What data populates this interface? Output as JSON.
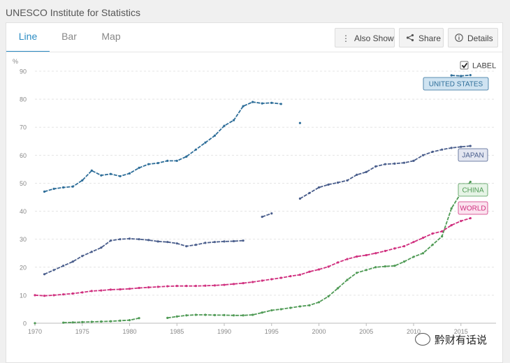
{
  "source": "UNESCO Institute for Statistics",
  "tabs": [
    {
      "label": "Line",
      "active": true
    },
    {
      "label": "Bar",
      "active": false
    },
    {
      "label": "Map",
      "active": false
    }
  ],
  "toolbar": {
    "also_show": "Also Show",
    "share": "Share",
    "details": "Details"
  },
  "label_toggle": {
    "label": "LABEL",
    "checked": true
  },
  "watermark": "黔财有话说",
  "chart_data": {
    "type": "line",
    "title": "",
    "xlabel": "",
    "ylabel": "%",
    "xlim": [
      1970,
      2016
    ],
    "ylim": [
      0,
      90
    ],
    "x_ticks": [
      1970,
      1975,
      1980,
      1985,
      1990,
      1995,
      2000,
      2005,
      2010,
      2015
    ],
    "y_ticks": [
      0,
      10,
      20,
      30,
      40,
      50,
      60,
      70,
      80,
      90
    ],
    "grid": true,
    "series": [
      {
        "name": "UNITED STATES",
        "color": "#2e6e99",
        "label_bg": "#cfe3f1",
        "segments": [
          [
            [
              1971,
              47
            ],
            [
              1972,
              48
            ],
            [
              1973,
              48.5
            ],
            [
              1974,
              48.8
            ],
            [
              1975,
              51
            ],
            [
              1976,
              54.5
            ],
            [
              1977,
              52.8
            ],
            [
              1978,
              53.3
            ],
            [
              1979,
              52.5
            ],
            [
              1980,
              53.5
            ],
            [
              1981,
              55.5
            ],
            [
              1982,
              56.8
            ],
            [
              1983,
              57.2
            ],
            [
              1984,
              58
            ],
            [
              1985,
              58
            ],
            [
              1986,
              59.5
            ],
            [
              1987,
              62
            ],
            [
              1988,
              64.5
            ],
            [
              1989,
              67
            ],
            [
              1990,
              70.5
            ],
            [
              1991,
              72.5
            ],
            [
              1992,
              77.5
            ],
            [
              1993,
              79
            ],
            [
              1994,
              78.5
            ],
            [
              1995,
              78.7
            ],
            [
              1996,
              78.3
            ]
          ],
          [
            [
              1998,
              71.5
            ]
          ],
          [
            [
              2014,
              88.5
            ],
            [
              2015,
              88.3
            ],
            [
              2016,
              88.6
            ]
          ]
        ]
      },
      {
        "name": "JAPAN",
        "color": "#4a5e8c",
        "label_bg": "#e3e6f1",
        "segments": [
          [
            [
              1971,
              17.5
            ],
            [
              1972,
              19
            ],
            [
              1973,
              20.5
            ],
            [
              1974,
              22
            ],
            [
              1975,
              24
            ],
            [
              1976,
              25.5
            ],
            [
              1977,
              27
            ],
            [
              1978,
              29.5
            ],
            [
              1979,
              30
            ],
            [
              1980,
              30.2
            ],
            [
              1981,
              30
            ],
            [
              1982,
              29.7
            ],
            [
              1983,
              29.2
            ],
            [
              1984,
              29
            ],
            [
              1985,
              28.5
            ],
            [
              1986,
              27.5
            ],
            [
              1987,
              28
            ],
            [
              1988,
              28.7
            ],
            [
              1989,
              29
            ],
            [
              1990,
              29.2
            ],
            [
              1991,
              29.3
            ],
            [
              1992,
              29.5
            ]
          ],
          [
            [
              1994,
              38
            ],
            [
              1995,
              39.2
            ]
          ],
          [
            [
              1998,
              44.5
            ],
            [
              1999,
              46.5
            ],
            [
              2000,
              48.5
            ],
            [
              2001,
              49.5
            ],
            [
              2002,
              50.2
            ],
            [
              2003,
              51
            ],
            [
              2004,
              53
            ],
            [
              2005,
              54
            ],
            [
              2006,
              56
            ],
            [
              2007,
              56.8
            ],
            [
              2008,
              57
            ],
            [
              2009,
              57.3
            ],
            [
              2010,
              58
            ],
            [
              2011,
              60
            ],
            [
              2012,
              61.2
            ],
            [
              2013,
              62
            ],
            [
              2014,
              62.6
            ],
            [
              2015,
              63
            ],
            [
              2016,
              63.3
            ]
          ]
        ]
      },
      {
        "name": "CHINA",
        "color": "#4f9a55",
        "label_bg": "#e6f4e6",
        "segments": [
          [
            [
              1970,
              0
            ]
          ],
          [
            [
              1973,
              0.2
            ],
            [
              1974,
              0.3
            ],
            [
              1975,
              0.4
            ],
            [
              1976,
              0.5
            ],
            [
              1977,
              0.6
            ],
            [
              1978,
              0.7
            ],
            [
              1979,
              0.9
            ],
            [
              1980,
              1.1
            ],
            [
              1981,
              1.8
            ]
          ],
          [
            [
              1984,
              1.9
            ],
            [
              1985,
              2.4
            ],
            [
              1986,
              2.8
            ],
            [
              1987,
              3
            ],
            [
              1988,
              3
            ],
            [
              1989,
              2.9
            ],
            [
              1990,
              2.9
            ],
            [
              1991,
              2.8
            ],
            [
              1992,
              2.8
            ],
            [
              1993,
              3
            ],
            [
              1994,
              3.8
            ],
            [
              1995,
              4.6
            ],
            [
              1996,
              5
            ],
            [
              1997,
              5.5
            ],
            [
              1998,
              6
            ],
            [
              1999,
              6.4
            ],
            [
              2000,
              7.5
            ],
            [
              2001,
              9.6
            ],
            [
              2002,
              12.5
            ],
            [
              2003,
              15.5
            ],
            [
              2004,
              18
            ],
            [
              2005,
              19
            ],
            [
              2006,
              20
            ],
            [
              2007,
              20.3
            ],
            [
              2008,
              20.5
            ],
            [
              2009,
              22
            ],
            [
              2010,
              23.7
            ],
            [
              2011,
              25
            ],
            [
              2012,
              28
            ],
            [
              2013,
              31
            ],
            [
              2014,
              41
            ],
            [
              2015,
              46.5
            ],
            [
              2016,
              50.5
            ]
          ]
        ]
      },
      {
        "name": "WORLD",
        "color": "#d0307f",
        "label_bg": "#fbe3ef",
        "segments": [
          [
            [
              1970,
              10
            ],
            [
              1971,
              9.8
            ],
            [
              1972,
              10
            ],
            [
              1973,
              10.3
            ],
            [
              1974,
              10.6
            ],
            [
              1975,
              11
            ],
            [
              1976,
              11.5
            ],
            [
              1977,
              11.7
            ],
            [
              1978,
              12
            ],
            [
              1979,
              12.1
            ],
            [
              1980,
              12.3
            ],
            [
              1981,
              12.6
            ],
            [
              1982,
              12.8
            ],
            [
              1983,
              13
            ],
            [
              1984,
              13.2
            ],
            [
              1985,
              13.3
            ],
            [
              1986,
              13.3
            ],
            [
              1987,
              13.3
            ],
            [
              1988,
              13.4
            ],
            [
              1989,
              13.5
            ],
            [
              1990,
              13.7
            ],
            [
              1991,
              14
            ],
            [
              1992,
              14.3
            ],
            [
              1993,
              14.7
            ],
            [
              1994,
              15.2
            ],
            [
              1995,
              15.7
            ],
            [
              1996,
              16.2
            ],
            [
              1997,
              16.8
            ],
            [
              1998,
              17.3
            ],
            [
              1999,
              18.4
            ],
            [
              2000,
              19.2
            ],
            [
              2001,
              20.2
            ],
            [
              2002,
              21.7
            ],
            [
              2003,
              22.9
            ],
            [
              2004,
              23.8
            ],
            [
              2005,
              24.3
            ],
            [
              2006,
              25
            ],
            [
              2007,
              25.8
            ],
            [
              2008,
              26.7
            ],
            [
              2009,
              27.5
            ],
            [
              2010,
              29
            ],
            [
              2011,
              30.5
            ],
            [
              2012,
              32
            ],
            [
              2013,
              32.8
            ],
            [
              2014,
              35
            ],
            [
              2015,
              36.5
            ],
            [
              2016,
              37.5
            ]
          ]
        ]
      }
    ]
  }
}
